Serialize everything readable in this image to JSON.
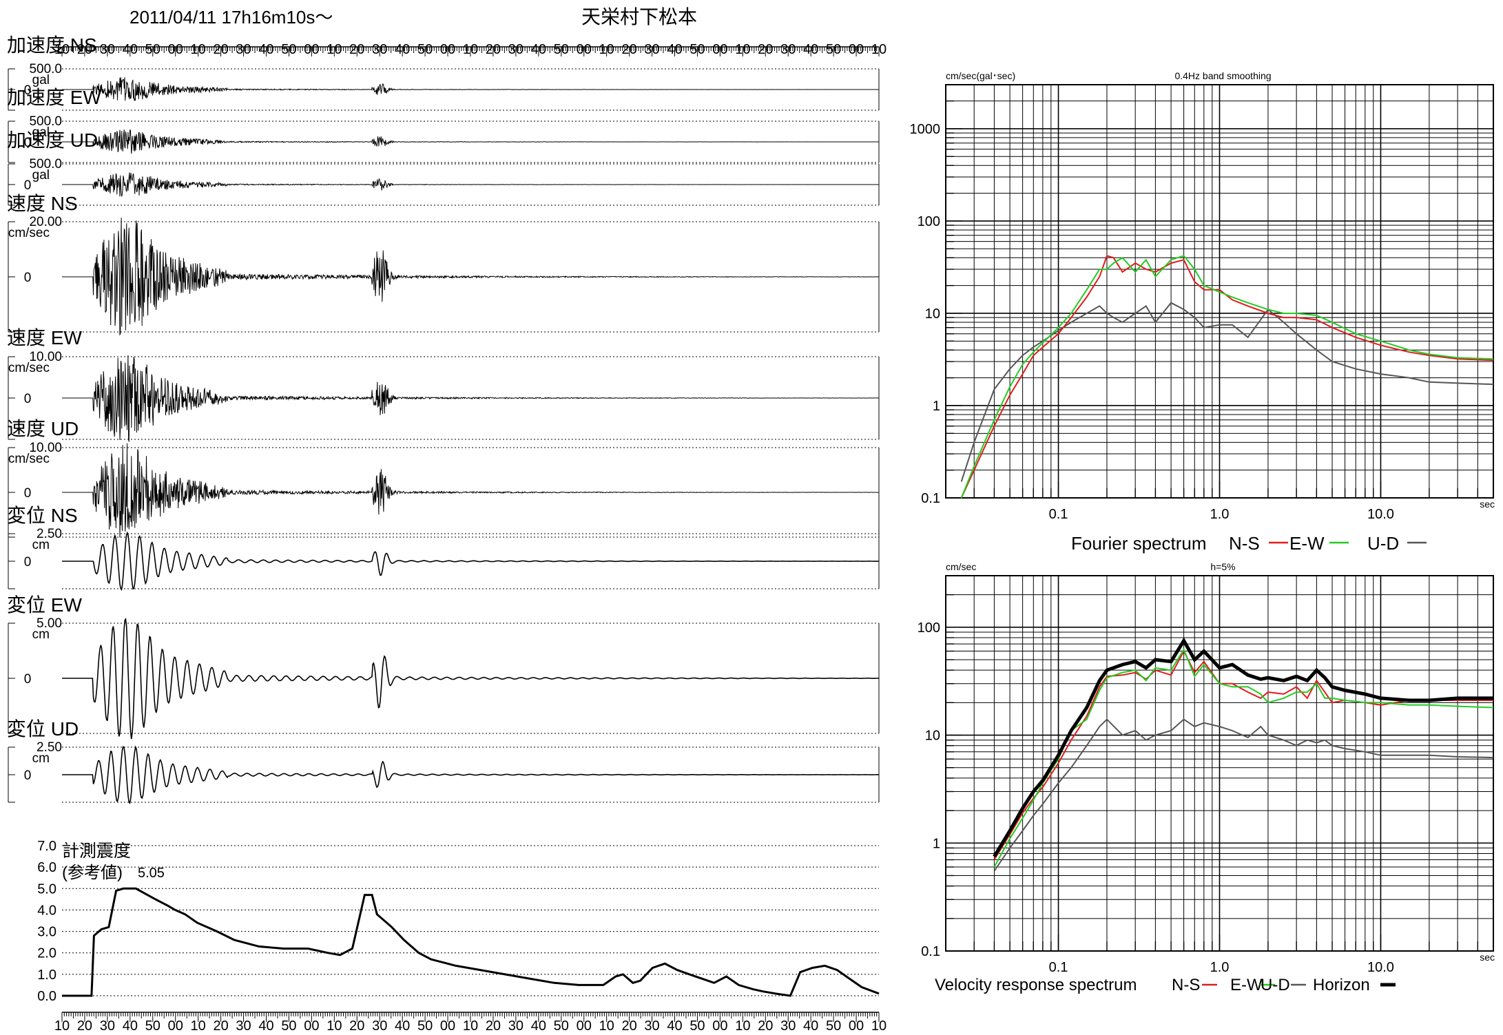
{
  "header": {
    "datetime": "2011/04/11 17h16m10s～",
    "station": "天栄村下松本"
  },
  "time_ticks": [
    "10",
    "20",
    "30",
    "40",
    "50",
    "00",
    "10",
    "20",
    "30",
    "40",
    "50",
    "00",
    "10",
    "20",
    "30",
    "40",
    "50",
    "00",
    "10",
    "20",
    "30",
    "40",
    "50",
    "00",
    "10",
    "20",
    "30",
    "40",
    "50",
    "00",
    "10",
    "20",
    "30",
    "40",
    "50",
    "00",
    "10"
  ],
  "waveforms": [
    {
      "title": "加速度 NS",
      "max_label": "500.0",
      "unit": "gal",
      "zero_label": "0"
    },
    {
      "title": "加速度 EW",
      "max_label": "500.0",
      "unit": "gal",
      "zero_label": "0"
    },
    {
      "title": "加速度 UD",
      "max_label": "500.0",
      "unit": "gal",
      "zero_label": "0"
    },
    {
      "title": "速度 NS",
      "max_label": "20.00",
      "unit": "cm/sec",
      "zero_label": "0"
    },
    {
      "title": "速度 EW",
      "max_label": "10.00",
      "unit": "cm/sec",
      "zero_label": "0"
    },
    {
      "title": "速度 UD",
      "max_label": "10.00",
      "unit": "cm/sec",
      "zero_label": "0"
    },
    {
      "title": "変位 NS",
      "max_label": "2.50",
      "unit": "cm",
      "zero_label": "0"
    },
    {
      "title": "変位 EW",
      "max_label": "5.00",
      "unit": "cm",
      "zero_label": "0"
    },
    {
      "title": "変位 UD",
      "max_label": "2.50",
      "unit": "cm",
      "zero_label": "0"
    }
  ],
  "intensity": {
    "title": "計測震度",
    "subtitle": "(参考値)",
    "max_value": "5.05",
    "y_ticks": [
      "7.0",
      "6.0",
      "5.0",
      "4.0",
      "3.0",
      "2.0",
      "1.0",
      "0.0"
    ]
  },
  "colors": {
    "ns": "#e31a1c",
    "ew": "#22cc22",
    "ud": "#555555",
    "horizon": "#000000"
  },
  "chart_data": [
    {
      "type": "line",
      "title": "計測震度 (参考値)",
      "x_unit": "sec",
      "ylim": [
        0,
        7
      ],
      "max": 5.05,
      "x": [
        0,
        12,
        13,
        16,
        19,
        22,
        25,
        30,
        38,
        43,
        46,
        50,
        55,
        63,
        70,
        80,
        90,
        100,
        108,
        113,
        118,
        123,
        126,
        128,
        131,
        134,
        139,
        145,
        150,
        160,
        170,
        180,
        190,
        200,
        210,
        220,
        225,
        228,
        232,
        235,
        240,
        245,
        250,
        255,
        260,
        265,
        270,
        275,
        281,
        285,
        290,
        296,
        300,
        305,
        310,
        315,
        320,
        325,
        332
      ],
      "values": [
        0,
        0,
        2.8,
        3.1,
        3.2,
        4.9,
        5.0,
        5.0,
        4.5,
        4.2,
        4.0,
        3.8,
        3.4,
        3.0,
        2.6,
        2.3,
        2.2,
        2.2,
        2.0,
        1.9,
        2.2,
        4.7,
        4.7,
        3.8,
        3.5,
        3.2,
        2.6,
        2.0,
        1.7,
        1.4,
        1.2,
        1.0,
        0.8,
        0.6,
        0.5,
        0.5,
        0.9,
        1.0,
        0.6,
        0.7,
        1.3,
        1.5,
        1.2,
        1.0,
        0.8,
        0.6,
        0.9,
        0.5,
        0.3,
        0.2,
        0.1,
        0.0,
        1.1,
        1.3,
        1.4,
        1.2,
        0.8,
        0.4,
        0.1
      ]
    },
    {
      "type": "line",
      "title": "Fourier spectrum",
      "top_left_label": "cm/sec(gal･sec)",
      "top_label": "0.4Hz band smoothing",
      "x_unit": "sec",
      "x_scale": "log",
      "y_scale": "log",
      "xlim": [
        0.02,
        50
      ],
      "ylim": [
        0.1,
        3000
      ],
      "x_tick_labels": [
        "0.1",
        "1.0",
        "10.0"
      ],
      "y_tick_labels": [
        "1000",
        "100",
        "10",
        "1",
        "0.1"
      ],
      "legend": [
        "N-S",
        "E-W",
        "U-D"
      ],
      "x": [
        0.025,
        0.03,
        0.04,
        0.05,
        0.06,
        0.07,
        0.08,
        0.1,
        0.12,
        0.15,
        0.18,
        0.2,
        0.22,
        0.25,
        0.3,
        0.35,
        0.4,
        0.5,
        0.6,
        0.7,
        0.8,
        1.0,
        1.2,
        1.5,
        2,
        2.5,
        3,
        4,
        5,
        7,
        10,
        15,
        20,
        30,
        50
      ],
      "series": [
        {
          "name": "N-S",
          "values": [
            0.1,
            0.2,
            0.6,
            1.3,
            2.2,
            3.5,
            4.3,
            6,
            9,
            15,
            25,
            42,
            40,
            28,
            35,
            30,
            28,
            35,
            38,
            22,
            18,
            18,
            14,
            12,
            10,
            9,
            9,
            8.5,
            7,
            5.5,
            4.5,
            3.8,
            3.5,
            3.2,
            3.1
          ]
        },
        {
          "name": "E-W",
          "values": [
            0.1,
            0.22,
            0.7,
            1.6,
            2.8,
            3.8,
            4.8,
            7,
            10,
            18,
            30,
            30,
            35,
            40,
            28,
            38,
            25,
            38,
            42,
            30,
            20,
            17,
            15,
            13,
            11,
            10,
            10,
            9.5,
            8,
            6,
            5,
            4,
            3.6,
            3.3,
            3.2
          ]
        },
        {
          "name": "U-D",
          "values": [
            0.15,
            0.4,
            1.5,
            2.5,
            3.5,
            4.3,
            5,
            6.5,
            8,
            10,
            12,
            10,
            9,
            8,
            10,
            12,
            8,
            13,
            11,
            9,
            7,
            7.5,
            7.5,
            5.5,
            11,
            8,
            6,
            4,
            3,
            2.5,
            2.2,
            2,
            1.8,
            1.75,
            1.7
          ]
        }
      ]
    },
    {
      "type": "line",
      "title": "Velocity response spectrum",
      "top_left_label": "cm/sec",
      "top_label": "h=5%",
      "x_unit": "sec",
      "x_scale": "log",
      "y_scale": "log",
      "xlim": [
        0.02,
        50
      ],
      "ylim": [
        0.1,
        300
      ],
      "x_tick_labels": [
        "0.1",
        "1.0",
        "10.0"
      ],
      "y_tick_labels": [
        "100",
        "10",
        "1",
        "0.1"
      ],
      "legend": [
        "N-S",
        "E-W",
        "U-D",
        "Horizon"
      ],
      "x": [
        0.04,
        0.05,
        0.06,
        0.07,
        0.08,
        0.1,
        0.12,
        0.15,
        0.18,
        0.2,
        0.25,
        0.3,
        0.35,
        0.4,
        0.5,
        0.6,
        0.7,
        0.8,
        1.0,
        1.2,
        1.5,
        1.8,
        2.0,
        2.5,
        3.0,
        3.5,
        4.0,
        4.5,
        5.0,
        6,
        8,
        10,
        15,
        20,
        30,
        50
      ],
      "series": [
        {
          "name": "N-S",
          "values": [
            0.7,
            1.2,
            1.9,
            2.6,
            3.3,
            5.5,
            9,
            15,
            28,
            35,
            36,
            38,
            33,
            40,
            36,
            60,
            38,
            48,
            30,
            30,
            25,
            22,
            25,
            24,
            28,
            22,
            32,
            25,
            20,
            21,
            20,
            19,
            21,
            21,
            21,
            21
          ]
        },
        {
          "name": "E-W",
          "values": [
            0.6,
            1.1,
            1.7,
            2.5,
            3.6,
            6,
            11,
            14,
            26,
            34,
            38,
            40,
            32,
            42,
            40,
            62,
            35,
            45,
            30,
            28,
            28,
            24,
            20,
            22,
            25,
            25,
            30,
            22,
            22,
            21,
            20,
            20,
            19,
            19,
            18.5,
            18
          ]
        },
        {
          "name": "U-D",
          "values": [
            0.55,
            0.9,
            1.3,
            1.8,
            2.3,
            3.6,
            5,
            8,
            12,
            14,
            10,
            11,
            9,
            10,
            11,
            14,
            12,
            13,
            12,
            11,
            9.5,
            12,
            10,
            9,
            8,
            9,
            8.5,
            9,
            8,
            7.5,
            7,
            6.5,
            6.5,
            6.5,
            6.3,
            6.2
          ]
        },
        {
          "name": "Horizon",
          "values": [
            0.75,
            1.3,
            2.1,
            3,
            3.8,
            6.5,
            11,
            18,
            32,
            40,
            45,
            48,
            42,
            50,
            48,
            75,
            50,
            60,
            42,
            45,
            36,
            33,
            34,
            32,
            35,
            32,
            40,
            34,
            28,
            26,
            24,
            22,
            21,
            21,
            22,
            22
          ]
        }
      ]
    }
  ]
}
